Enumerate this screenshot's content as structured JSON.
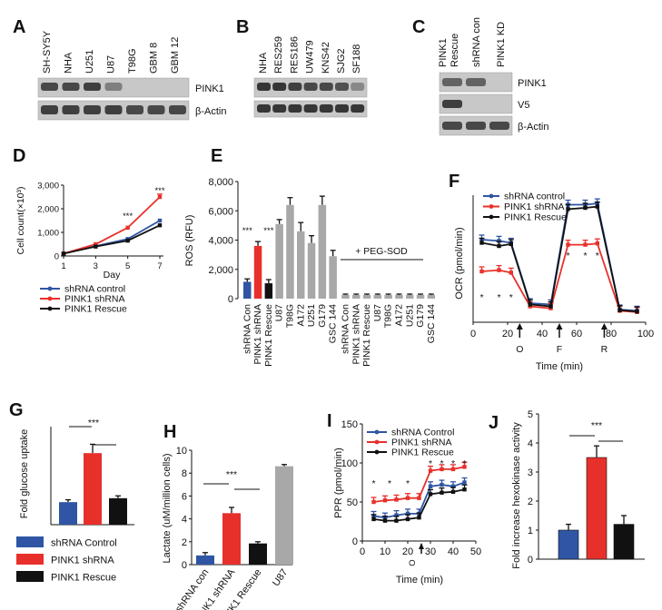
{
  "panels": {
    "A": {
      "letter": "A",
      "lanes": [
        "SH-SY5Y",
        "NHA",
        "U251",
        "U87",
        "T98G",
        "GBM 8",
        "GBM 12"
      ],
      "rows": [
        "PINK1",
        "β-Actin"
      ],
      "pink1_intensity": [
        0.7,
        0.7,
        0.75,
        0.4,
        0.04,
        0.03,
        0.03
      ],
      "actin_intensity": [
        0.75,
        0.75,
        0.75,
        0.75,
        0.7,
        0.7,
        0.7
      ]
    },
    "B": {
      "letter": "B",
      "lanes": [
        "NHA",
        "RES259",
        "RES186",
        "UW479",
        "KNS42",
        "SJG2",
        "SF188"
      ],
      "pink1_intensity": [
        0.8,
        0.8,
        0.75,
        0.7,
        0.7,
        0.65,
        0.35
      ],
      "actin_intensity": [
        0.8,
        0.8,
        0.8,
        0.8,
        0.8,
        0.8,
        0.8
      ]
    },
    "C": {
      "letter": "C",
      "lanes": [
        "PINK1 Rescue",
        "shRNA con",
        "PINK1 KD"
      ],
      "rows": [
        "PINK1",
        "V5",
        "β-Actin"
      ],
      "pink1_intensity": [
        0.55,
        0.55,
        0.04
      ],
      "v5_intensity": [
        0.75,
        0.03,
        0.03
      ],
      "actin_intensity": [
        0.7,
        0.7,
        0.7
      ]
    },
    "D": {
      "letter": "D"
    },
    "E": {
      "letter": "E"
    },
    "F": {
      "letter": "F"
    },
    "G": {
      "letter": "G"
    },
    "H": {
      "letter": "H"
    },
    "I": {
      "letter": "I"
    },
    "J": {
      "letter": "J"
    }
  },
  "colors": {
    "blue": "#2f55a4",
    "red": "#e8302b",
    "black": "#111111",
    "gray": "#a8a8a8"
  },
  "chart_data": [
    {
      "id": "D",
      "type": "line",
      "ylabel": "Cell count(×10³)",
      "xlabel": "Day",
      "x": [
        1,
        3,
        5,
        7
      ],
      "xticks": [
        "1",
        "3",
        "5",
        "7"
      ],
      "yticks": [
        "0",
        "1,000",
        "2,000",
        "3,000"
      ],
      "ylim": [
        0,
        3000
      ],
      "series": [
        {
          "name": "shRNA control",
          "color": "#2f55a4",
          "values": [
            100,
            420,
            720,
            1500
          ]
        },
        {
          "name": "PINK1 shRNA",
          "color": "#e8302b",
          "values": [
            100,
            500,
            1200,
            2500
          ]
        },
        {
          "name": "PINK1 Rescue",
          "color": "#111111",
          "values": [
            100,
            400,
            650,
            1300
          ]
        }
      ],
      "annotations": [
        "***",
        "***"
      ],
      "legend": "below"
    },
    {
      "id": "E",
      "type": "bar",
      "ylabel": "ROS (RFU)",
      "yticks": [
        "0",
        "2,000",
        "4,000",
        "6,000",
        "8,000"
      ],
      "ylim": [
        0,
        8000
      ],
      "categories": [
        "shRNA Con",
        "PINK1 shRNA",
        "PINK1 Rescue",
        "U87",
        "T98G",
        "A172",
        "U251",
        "G179",
        "GSC 144",
        "shRNA Con",
        "PINK1 shRNA",
        "PINK1 Rescue",
        "U87",
        "T98G",
        "A172",
        "U251",
        "G179",
        "GSC 144"
      ],
      "values": [
        1150,
        3600,
        1050,
        5100,
        6400,
        4600,
        3800,
        6400,
        2900,
        250,
        250,
        250,
        250,
        250,
        250,
        250,
        250,
        250
      ],
      "errors": [
        200,
        300,
        250,
        300,
        500,
        600,
        500,
        600,
        400,
        60,
        60,
        60,
        60,
        60,
        60,
        60,
        60,
        60
      ],
      "bar_colors": [
        "#2f55a4",
        "#e8302b",
        "#111111",
        "#a8a8a8",
        "#a8a8a8",
        "#a8a8a8",
        "#a8a8a8",
        "#a8a8a8",
        "#a8a8a8",
        "#a8a8a8",
        "#a8a8a8",
        "#a8a8a8",
        "#a8a8a8",
        "#a8a8a8",
        "#a8a8a8",
        "#a8a8a8",
        "#a8a8a8",
        "#a8a8a8"
      ],
      "annotations": [
        "***",
        "***",
        "+ PEG-SOD"
      ]
    },
    {
      "id": "F",
      "type": "line",
      "ylabel": "OCR (pmol/min)",
      "xlabel": "Time (min)",
      "x": [
        5,
        15,
        22,
        33,
        45,
        55,
        65,
        72,
        85,
        95
      ],
      "xticks": [
        "0",
        "20",
        "40",
        "60",
        "80",
        "100"
      ],
      "xlim": [
        0,
        100
      ],
      "ylim": [
        0,
        200
      ],
      "series": [
        {
          "name": "shRNA control",
          "color": "#2f55a4",
          "values": [
            130,
            128,
            125,
            30,
            28,
            185,
            185,
            187,
            20,
            18
          ]
        },
        {
          "name": "PINK1 shRNA",
          "color": "#e8302b",
          "values": [
            80,
            82,
            78,
            25,
            22,
            122,
            122,
            124,
            18,
            16
          ]
        },
        {
          "name": "PINK1 Rescue",
          "color": "#111111",
          "values": [
            125,
            120,
            123,
            28,
            25,
            178,
            180,
            182,
            19,
            17
          ]
        }
      ],
      "markers": [
        "O",
        "F",
        "R"
      ],
      "annotations": [
        "*",
        "*",
        "*",
        "*",
        "*",
        "*"
      ],
      "legend": "top-right"
    },
    {
      "id": "G",
      "type": "bar",
      "ylabel": "Fold glucose uptake",
      "categories": [
        "shRNA Control",
        "PINK1 shRNA",
        "PINK1  Rescue"
      ],
      "values": [
        1.15,
        3.65,
        1.35
      ],
      "errors": [
        0.12,
        0.45,
        0.12
      ],
      "ylim": [
        0,
        5
      ],
      "bar_colors": [
        "#2f55a4",
        "#e8302b",
        "#111111"
      ],
      "annotations": [
        "***"
      ],
      "legend": "below"
    },
    {
      "id": "H",
      "type": "bar",
      "ylabel": "Lactate (uM/million cells)",
      "categories": [
        "shRNA con",
        "PINK1 shRNA",
        "PINK1 Rescue",
        "U87"
      ],
      "values": [
        0.8,
        4.5,
        1.85,
        8.6
      ],
      "errors": [
        0.25,
        0.5,
        0.15,
        0.15
      ],
      "yticks": [
        "0",
        "2",
        "4",
        "6",
        "8",
        "10"
      ],
      "ylim": [
        0,
        10
      ],
      "bar_colors": [
        "#2f55a4",
        "#e8302b",
        "#111111",
        "#a8a8a8"
      ],
      "annotations": [
        "***"
      ]
    },
    {
      "id": "I",
      "type": "line",
      "ylabel": "PPR (pmol/min)",
      "xlabel": "Time (min)",
      "x": [
        5,
        10,
        15,
        20,
        25,
        30,
        35,
        40,
        45
      ],
      "xticks": [
        "0",
        "10",
        "20",
        "30",
        "40",
        "50"
      ],
      "xlim": [
        0,
        50
      ],
      "yticks": [
        "0",
        "50",
        "100",
        "150"
      ],
      "ylim": [
        0,
        150
      ],
      "series": [
        {
          "name": "shRNA Control",
          "color": "#2f55a4",
          "values": [
            32,
            30,
            33,
            35,
            35,
            70,
            72,
            70,
            75
          ]
        },
        {
          "name": "PINK1 shRNA",
          "color": "#e8302b",
          "values": [
            50,
            52,
            53,
            55,
            55,
            90,
            92,
            92,
            95
          ]
        },
        {
          "name": "PINK1 Rescue",
          "color": "#111111",
          "values": [
            28,
            26,
            26,
            28,
            30,
            60,
            62,
            63,
            66
          ]
        }
      ],
      "markers": [
        "O"
      ],
      "annotations": [
        "*",
        "*",
        "*",
        "*",
        "*",
        "*",
        "*"
      ],
      "legend": "top-left"
    },
    {
      "id": "J",
      "type": "bar",
      "ylabel": "Fold increase hexokinase activity",
      "categories": [
        "shRNA Control",
        "PINK1 shRNA",
        "PINK1  Rescue"
      ],
      "values": [
        1.0,
        3.5,
        1.2
      ],
      "errors": [
        0.2,
        0.4,
        0.3
      ],
      "yticks": [
        "0",
        "1",
        "2",
        "3",
        "4",
        "5"
      ],
      "ylim": [
        0,
        5
      ],
      "bar_colors": [
        "#2f55a4",
        "#e8302b",
        "#111111"
      ],
      "annotations": [
        "***"
      ]
    }
  ]
}
